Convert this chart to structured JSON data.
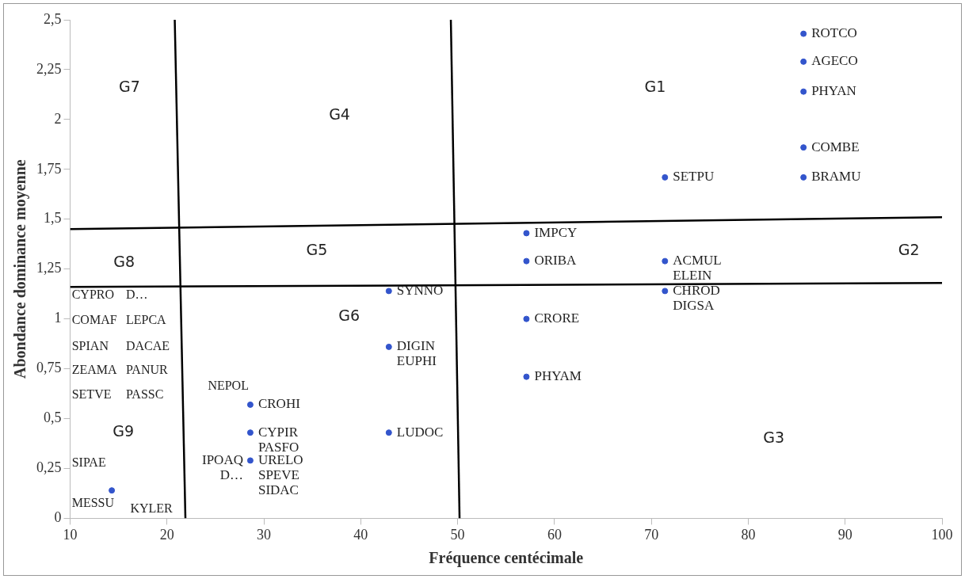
{
  "chart_data": {
    "type": "scatter",
    "xlabel": "Fréquence centécimale",
    "ylabel": "Abondance dominance moyenne",
    "xlim": [
      10,
      100
    ],
    "xticks": [
      10,
      20,
      30,
      40,
      50,
      60,
      70,
      80,
      90,
      100
    ],
    "ylim": [
      0,
      2.5
    ],
    "yticks": [
      0,
      {
        "value": 0.25,
        "label": "0,25"
      },
      {
        "value": 0.5,
        "label": "0,5"
      },
      {
        "value": 0.75,
        "label": "0,75"
      },
      1,
      {
        "value": 1.25,
        "label": "1,25"
      },
      {
        "value": 1.5,
        "label": "1,5"
      },
      {
        "value": 1.75,
        "label": "1,75"
      },
      2,
      {
        "value": 2.25,
        "label": "2,25"
      },
      {
        "value": 2.5,
        "label": "2,5"
      }
    ],
    "grid": false,
    "legend": false,
    "marker": "circle",
    "series": [
      {
        "color": "#3355cc",
        "x": [
          85.7,
          85.7,
          85.7,
          85.7,
          85.7,
          71.4,
          71.4,
          71.4,
          57.1,
          57.1,
          57.1,
          57.1,
          42.9,
          42.9,
          42.9,
          28.6,
          28.6,
          28.6,
          14.3
        ],
        "values": [
          2.43,
          2.29,
          2.14,
          1.86,
          1.71,
          1.71,
          1.29,
          1.14,
          1.43,
          1.29,
          1.0,
          0.71,
          1.14,
          0.86,
          0.43,
          0.57,
          0.43,
          0.29,
          0.14
        ]
      },
      {
        "type": "line",
        "marker": "none",
        "color": "#000000",
        "x": [
          20.8,
          21.9
        ],
        "values": [
          2.5,
          0
        ]
      },
      {
        "type": "line",
        "marker": "none",
        "color": "#000000",
        "x": [
          49.3,
          50.2
        ],
        "values": [
          2.5,
          0
        ]
      },
      {
        "type": "line",
        "marker": "none",
        "color": "#000000",
        "x": [
          10,
          100
        ],
        "values": [
          1.45,
          1.51
        ]
      },
      {
        "type": "line",
        "marker": "none",
        "color": "#000000",
        "x": [
          10,
          100
        ],
        "values": [
          1.16,
          1.18
        ]
      }
    ],
    "annotations": [
      {
        "text": "ROTCO",
        "x": 85.7,
        "y": 2.43
      },
      {
        "text": "AGECO",
        "x": 85.7,
        "y": 2.29
      },
      {
        "text": "PHYAN",
        "x": 85.7,
        "y": 2.14
      },
      {
        "text": "COMBE",
        "x": 85.7,
        "y": 1.86
      },
      {
        "text": "BRAMU",
        "x": 85.7,
        "y": 1.71
      },
      {
        "text": "SETPU",
        "x": 71.4,
        "y": 1.71
      },
      {
        "text": "ACMUL",
        "x": 71.4,
        "y": 1.29
      },
      {
        "text": "ELEIN",
        "x": 71.4,
        "y": 1.29
      },
      {
        "text": "IMPCY",
        "x": 57.1,
        "y": 1.43
      },
      {
        "text": "ORIBA",
        "x": 57.1,
        "y": 1.29
      },
      {
        "text": "CHROD",
        "x": 71.4,
        "y": 1.14
      },
      {
        "text": "DIGSA",
        "x": 71.4,
        "y": 1.14
      },
      {
        "text": "CRORE",
        "x": 57.1,
        "y": 1.0
      },
      {
        "text": "PHYAM",
        "x": 57.1,
        "y": 0.71
      },
      {
        "text": "SYNNO",
        "x": 42.9,
        "y": 1.14
      },
      {
        "text": "DIGIN",
        "x": 42.9,
        "y": 0.86
      },
      {
        "text": "EUPHI",
        "x": 42.9,
        "y": 0.86
      },
      {
        "text": "LUDOC",
        "x": 42.9,
        "y": 0.43
      },
      {
        "text": "CROHI",
        "x": 28.6,
        "y": 0.57
      },
      {
        "text": "CYPIR",
        "x": 28.6,
        "y": 0.43
      },
      {
        "text": "PASFO",
        "x": 28.6,
        "y": 0.43
      },
      {
        "text": "URELO",
        "x": 28.6,
        "y": 0.29
      },
      {
        "text": "SPEVE",
        "x": 28.6,
        "y": 0.29
      },
      {
        "text": "SIDAC",
        "x": 28.6,
        "y": 0.29
      },
      {
        "text": "IPOAQ",
        "x": 28.6,
        "y": 0.29
      },
      {
        "text": "D…",
        "x": 28.6,
        "y": 0.29
      },
      "G1",
      "G2",
      "G3",
      "G4",
      "G5",
      "G6",
      "G7",
      "G8",
      "G9",
      "CYPRO",
      "D…",
      "COMAF",
      "LEPCA",
      "SPIAN",
      "DACAE",
      "ZEAMA",
      "PANUR",
      "SETVE",
      "PASSC",
      "SIPAE",
      "MESSU",
      "KYLER",
      "NEPOL"
    ]
  }
}
